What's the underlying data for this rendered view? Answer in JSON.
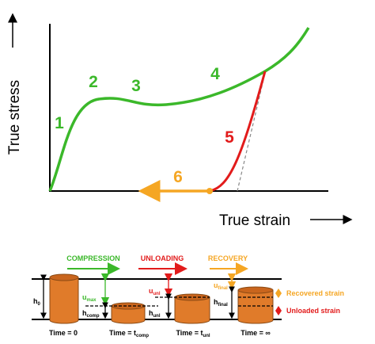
{
  "plot": {
    "y_label": "True stress",
    "x_label": "True strain",
    "stages": [
      "1",
      "2",
      "3",
      "4",
      "5",
      "6"
    ]
  },
  "schematic": {
    "phases": [
      "COMPRESSION",
      "UNLOADING",
      "RECOVERY"
    ],
    "labels": {
      "h0": {
        "main": "h",
        "sub": "0"
      },
      "umax": {
        "main": "u",
        "sub": "max"
      },
      "hcomp": {
        "main": "h",
        "sub": "comp"
      },
      "uunl": {
        "main": "u",
        "sub": "unl"
      },
      "hunl": {
        "main": "h",
        "sub": "unl"
      },
      "ufinal": {
        "main": "u",
        "sub": "final"
      },
      "hfinal": {
        "main": "h",
        "sub": "final"
      }
    },
    "times": [
      {
        "main": "Time = 0",
        "sub": ""
      },
      {
        "main": "Time = t",
        "sub": "comp"
      },
      {
        "main": "Time = t",
        "sub": "unl"
      },
      {
        "main": "Time = ∞",
        "sub": ""
      }
    ],
    "legend": [
      "Recovered strain",
      "Unloaded strain"
    ]
  }
}
